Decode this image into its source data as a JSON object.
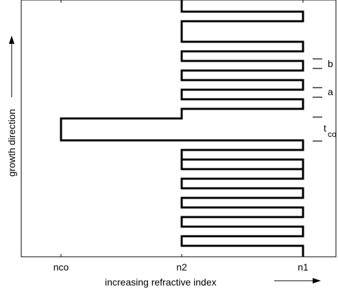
{
  "xaxis": {
    "label": "increasing refractive index",
    "ticks": [
      "nco",
      "n2",
      "n1"
    ]
  },
  "yaxis": {
    "label": "growth direction"
  },
  "annotations": {
    "b": "b",
    "a": "a",
    "t": "t",
    "t_sub": "co"
  }
}
